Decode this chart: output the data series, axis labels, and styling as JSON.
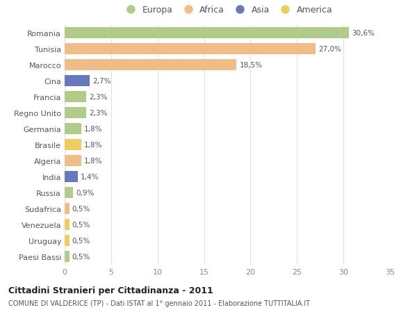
{
  "countries": [
    "Romania",
    "Tunisia",
    "Marocco",
    "Cina",
    "Francia",
    "Regno Unito",
    "Germania",
    "Brasile",
    "Algeria",
    "India",
    "Russia",
    "Sudafrica",
    "Venezuela",
    "Uruguay",
    "Paesi Bassi"
  ],
  "values": [
    30.6,
    27.0,
    18.5,
    2.7,
    2.3,
    2.3,
    1.8,
    1.8,
    1.8,
    1.4,
    0.9,
    0.5,
    0.5,
    0.5,
    0.5
  ],
  "labels": [
    "30,6%",
    "27,0%",
    "18,5%",
    "2,7%",
    "2,3%",
    "2,3%",
    "1,8%",
    "1,8%",
    "1,8%",
    "1,4%",
    "0,9%",
    "0,5%",
    "0,5%",
    "0,5%",
    "0,5%"
  ],
  "colors": [
    "#b0cc88",
    "#f0bc88",
    "#f0bc88",
    "#6878c0",
    "#b0cc88",
    "#b0cc88",
    "#b0cc88",
    "#f0cc60",
    "#f0bc88",
    "#6878c0",
    "#b0cc88",
    "#f0bc88",
    "#f0cc60",
    "#f0cc60",
    "#b0cc88"
  ],
  "legend_labels": [
    "Europa",
    "Africa",
    "Asia",
    "America"
  ],
  "legend_colors": [
    "#b0cc88",
    "#f0bc88",
    "#6878c0",
    "#f0cc60"
  ],
  "title": "Cittadini Stranieri per Cittadinanza - 2011",
  "subtitle": "COMUNE DI VALDERICE (TP) - Dati ISTAT al 1° gennaio 2011 - Elaborazione TUTTITALIA.IT",
  "xlim": [
    0,
    35
  ],
  "xticks": [
    0,
    5,
    10,
    15,
    20,
    25,
    30,
    35
  ],
  "plot_bg_color": "#ffffff",
  "fig_bg_color": "#ffffff",
  "grid_color": "#e0e0e0",
  "bar_height": 0.7,
  "label_color": "#555555",
  "tick_color": "#888888"
}
